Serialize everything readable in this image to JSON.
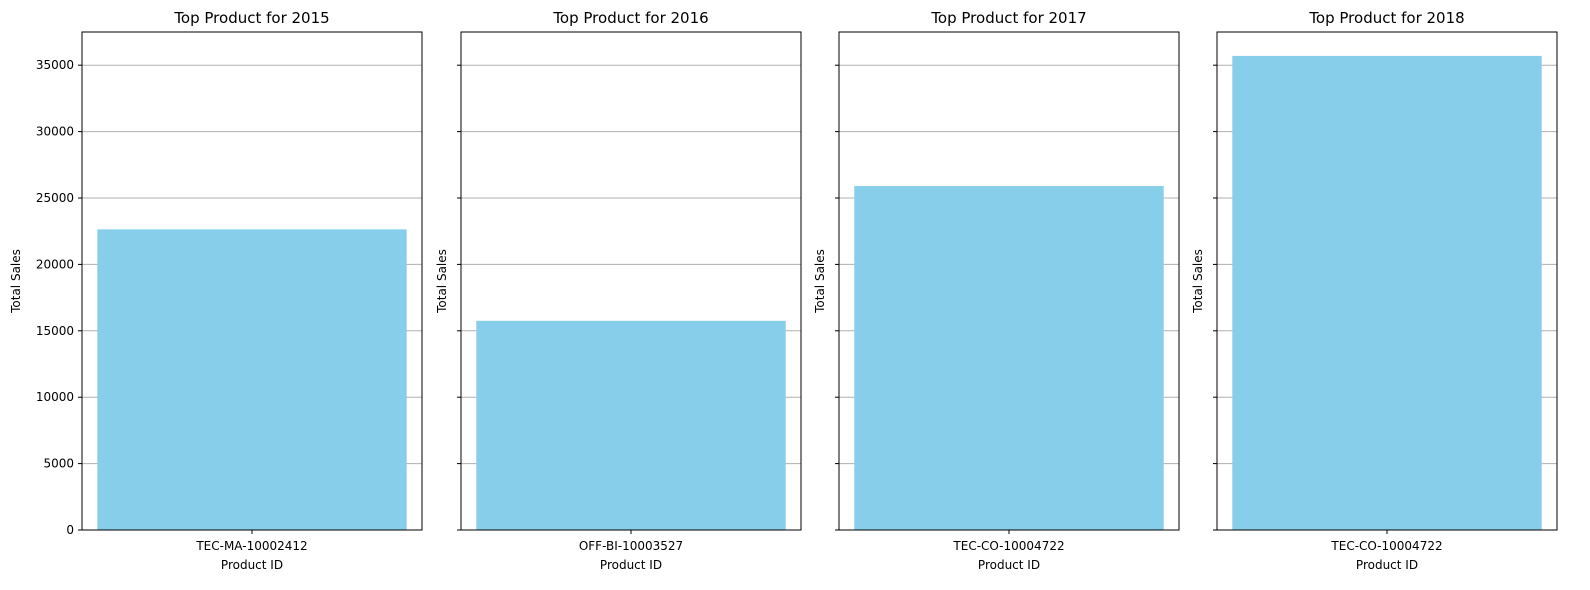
{
  "chart_data": [
    {
      "type": "bar",
      "title": "Top Product for 2015",
      "xlabel": "Product ID",
      "ylabel": "Total Sales",
      "categories": [
        "TEC-MA-10002412"
      ],
      "values": [
        22638
      ],
      "ylim": [
        0,
        37500
      ],
      "yticks": [
        "0",
        "5000",
        "10000",
        "15000",
        "20000",
        "25000",
        "30000",
        "35000"
      ],
      "show_ytick_labels": true,
      "grid": "y",
      "bar_color": "#87ceeb"
    },
    {
      "type": "bar",
      "title": "Top Product for 2016",
      "xlabel": "Product ID",
      "ylabel": "Total Sales",
      "categories": [
        "OFF-BI-10003527"
      ],
      "values": [
        15752
      ],
      "ylim": [
        0,
        37500
      ],
      "yticks": [
        "0",
        "5000",
        "10000",
        "15000",
        "20000",
        "25000",
        "30000",
        "35000"
      ],
      "show_ytick_labels": false,
      "grid": "y",
      "bar_color": "#87ceeb"
    },
    {
      "type": "bar",
      "title": "Top Product for 2017",
      "xlabel": "Product ID",
      "ylabel": "Total Sales",
      "categories": [
        "TEC-CO-10004722"
      ],
      "values": [
        25900
      ],
      "ylim": [
        0,
        37500
      ],
      "yticks": [
        "0",
        "5000",
        "10000",
        "15000",
        "20000",
        "25000",
        "30000",
        "35000"
      ],
      "show_ytick_labels": false,
      "grid": "y",
      "bar_color": "#87ceeb"
    },
    {
      "type": "bar",
      "title": "Top Product for 2018",
      "xlabel": "Product ID",
      "ylabel": "Total Sales",
      "categories": [
        "TEC-CO-10004722"
      ],
      "values": [
        35700
      ],
      "ylim": [
        0,
        37500
      ],
      "yticks": [
        "0",
        "5000",
        "10000",
        "15000",
        "20000",
        "25000",
        "30000",
        "35000"
      ],
      "show_ytick_labels": false,
      "grid": "y",
      "bar_color": "#87ceeb"
    }
  ]
}
